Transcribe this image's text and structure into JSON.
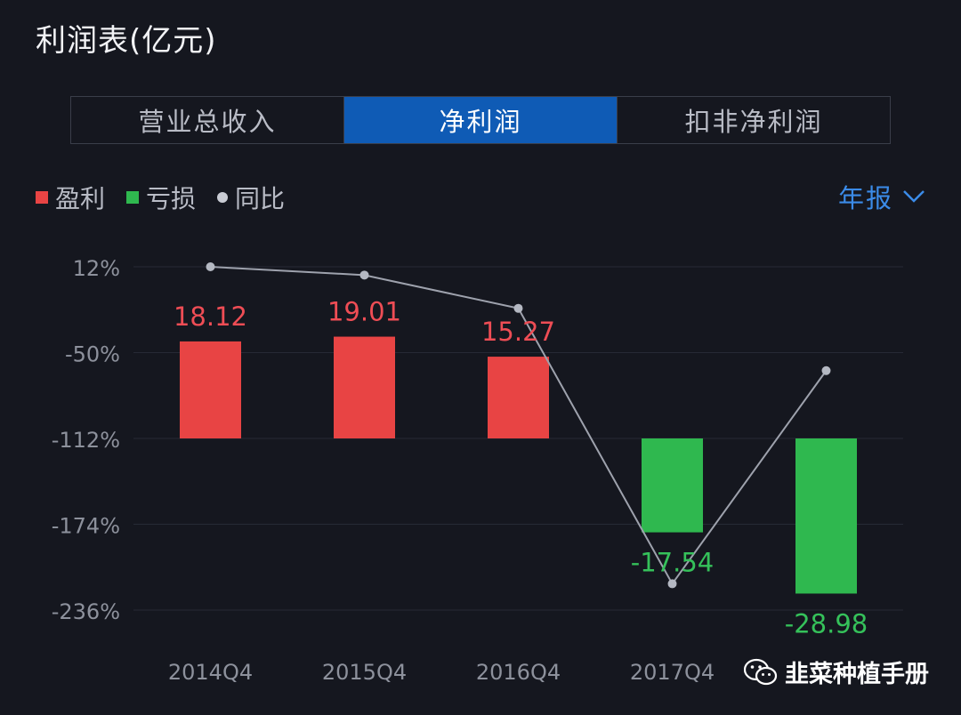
{
  "header": {
    "title": "利润表(亿元)"
  },
  "tabs": [
    {
      "label": "营业总收入",
      "active": false
    },
    {
      "label": "净利润",
      "active": true
    },
    {
      "label": "扣非净利润",
      "active": false
    }
  ],
  "legend": {
    "profit": "盈利",
    "loss": "亏损",
    "yoy": "同比"
  },
  "period_selector": {
    "label": "年报",
    "icon": "chevron-down-icon"
  },
  "colors": {
    "profit": "#e84444",
    "loss": "#2fb84f",
    "yoy": "#9ea2ad",
    "accent": "#0f5bb5"
  },
  "watermark": {
    "text": "韭菜种植手册",
    "icon": "wechat-icon"
  },
  "chart_data": {
    "type": "bar",
    "categories": [
      "2014Q4",
      "2015Q4",
      "2016Q4",
      "2017Q4",
      ""
    ],
    "values": [
      18.12,
      19.01,
      15.27,
      -17.54,
      -28.98
    ],
    "value_labels": [
      "18.12",
      "19.01",
      "15.27",
      "-17.54",
      "-28.98"
    ],
    "yoy_axis": {
      "ticks": [
        "12%",
        "-50%",
        "-112%",
        "-174%",
        "-236%"
      ],
      "tick_values": [
        12,
        -50,
        -112,
        -174,
        -236
      ],
      "range": [
        -236,
        12
      ]
    },
    "yoy_series": {
      "values": [
        12,
        6,
        -18,
        -217,
        -63
      ]
    }
  }
}
